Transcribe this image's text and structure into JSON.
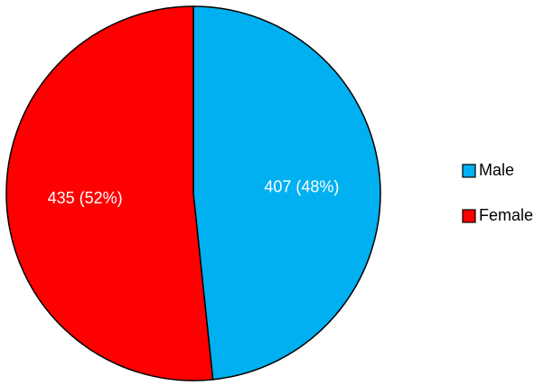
{
  "chart_data": {
    "type": "pie",
    "title": "",
    "categories": [
      "Male",
      "Female"
    ],
    "values": [
      407,
      435
    ],
    "labels": [
      "407 (48%)",
      "435 (52%)"
    ],
    "colors": [
      "#00B0F0",
      "#FF0000"
    ],
    "start_angle_deg": 0,
    "direction": "clockwise",
    "legend": {
      "position": "right",
      "entries": [
        "Male",
        "Female"
      ]
    }
  }
}
